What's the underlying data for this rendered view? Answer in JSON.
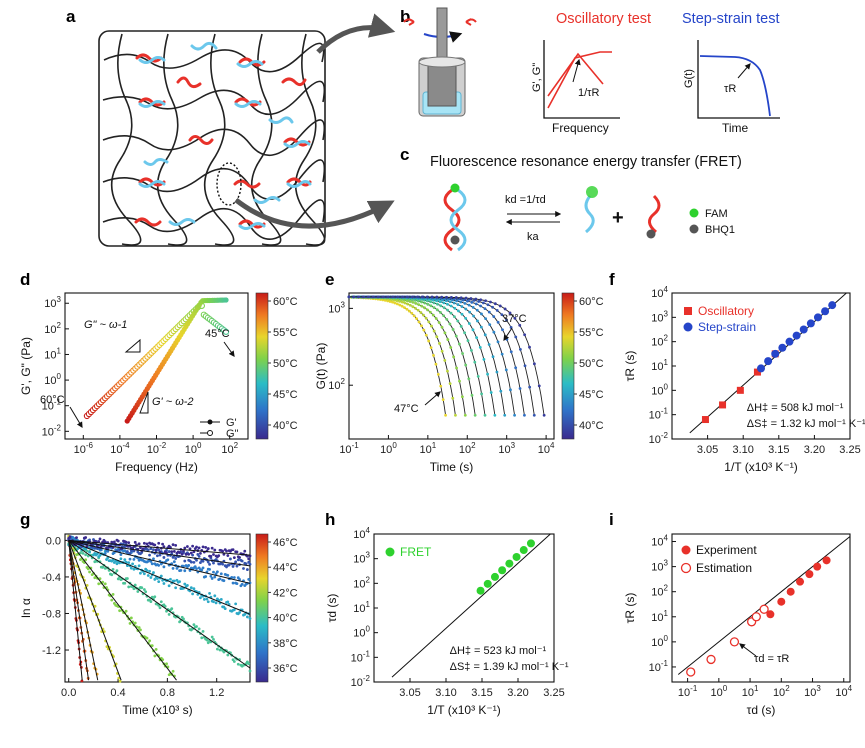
{
  "colors": {
    "red": "#e8312a",
    "blue": "#2545c9",
    "light_blue": "#6cc8ec",
    "green": "#2ed12e",
    "dark": "#111111"
  },
  "panels": {
    "a": {
      "label": "a"
    },
    "b": {
      "label": "b",
      "osc_title": "Oscillatory test",
      "step_title": "Step-strain test",
      "osc_ylabel": "G', G\"",
      "osc_xlabel": "Frequency",
      "osc_note": "1/τR",
      "step_ylabel": "G(t)",
      "step_xlabel": "Time",
      "step_note": "τR"
    },
    "c": {
      "label": "c",
      "title": "Fluorescence resonance energy transfer (FRET)",
      "kd": "kd =1/τd",
      "ka": "ka",
      "plus": "+",
      "legend": [
        "FAM",
        "BHQ1"
      ]
    },
    "d": {
      "label": "d"
    },
    "e": {
      "label": "e"
    },
    "f": {
      "label": "f"
    },
    "g": {
      "label": "g"
    },
    "h": {
      "label": "h"
    },
    "i": {
      "label": "i"
    }
  },
  "chart_data": [
    {
      "id": "d",
      "type": "scatter",
      "xlabel": "Frequency (Hz)",
      "ylabel": "G', G\" (Pa)",
      "x_ticks": [
        "10-6",
        "10-4",
        "10-2",
        "100",
        "102"
      ],
      "y_ticks": [
        "103",
        "102",
        "101",
        "100",
        "10-1",
        "10-2"
      ],
      "xlim_log": [
        -7,
        3
      ],
      "ylim_log": [
        -2.3,
        3.4
      ],
      "colorbar": {
        "ticks": [
          "60°C",
          "55°C",
          "50°C",
          "45°C",
          "40°C"
        ],
        "range": [
          37,
          60
        ]
      },
      "annotations": [
        "G\" ~ ω-1",
        "G' ~ ω-2",
        "60°C",
        "45°C"
      ],
      "legend": [
        "G'",
        "G\""
      ],
      "series": [
        {
          "name": "G'",
          "temp_range": [
            60,
            45
          ],
          "log_omega_start": -3.6,
          "log_omega_end": 1.8,
          "slope": 2,
          "plateau": 3.2
        },
        {
          "name": "G\"",
          "temp_range": [
            60,
            45
          ],
          "log_omega_start": -5.8,
          "log_omega_end": 1.8,
          "slope": 1,
          "peak_log": 2.6
        }
      ]
    },
    {
      "id": "e",
      "type": "line",
      "xlabel": "Time (s)",
      "ylabel": "G(t) (Pa)",
      "x_ticks": [
        "10-1",
        "100",
        "101",
        "102",
        "103",
        "104"
      ],
      "y_ticks": [
        "103",
        "102"
      ],
      "xlim_log": [
        -1,
        4.2
      ],
      "ylim_log": [
        1.3,
        3.2
      ],
      "colorbar": {
        "ticks": [
          "60°C",
          "55°C",
          "50°C",
          "45°C",
          "40°C"
        ],
        "range": [
          35,
          60
        ]
      },
      "annotations": [
        "37°C",
        "47°C"
      ],
      "series": [
        {
          "name": "47°C",
          "tau_log": 0.9
        },
        {
          "name": "46°C",
          "tau_log": 1.15
        },
        {
          "name": "45°C",
          "tau_log": 1.4
        },
        {
          "name": "44°C",
          "tau_log": 1.65
        },
        {
          "name": "43°C",
          "tau_log": 1.9
        },
        {
          "name": "42°C",
          "tau_log": 2.15
        },
        {
          "name": "41°C",
          "tau_log": 2.4
        },
        {
          "name": "40°C",
          "tau_log": 2.65
        },
        {
          "name": "39°C",
          "tau_log": 2.9
        },
        {
          "name": "38°C",
          "tau_log": 3.15
        },
        {
          "name": "37°C",
          "tau_log": 3.4
        }
      ]
    },
    {
      "id": "f",
      "type": "scatter",
      "xlabel": "1/T (x10³ K⁻¹)",
      "ylabel": "τR (s)",
      "x_ticks": [
        "3.05",
        "3.10",
        "3.15",
        "3.20",
        "3.25"
      ],
      "y_ticks": [
        "104",
        "103",
        "102",
        "101",
        "100",
        "10-1",
        "10-2"
      ],
      "xlim": [
        3.0,
        3.25
      ],
      "ylim_log": [
        -2,
        4
      ],
      "legend": [
        "Oscillatory",
        "Step-strain"
      ],
      "fit_note": [
        "ΔH‡ = 508 kJ mol⁻¹",
        "ΔS‡ = 1.32 kJ mol⁻¹ K⁻¹"
      ],
      "fit_line": {
        "x": [
          3.025,
          3.245
        ],
        "log_y": [
          -1.75,
          4.35
        ]
      },
      "series": [
        {
          "name": "Oscillatory",
          "x": [
            3.047,
            3.071,
            3.096,
            3.12,
            3.145
          ],
          "log_y": [
            -1.2,
            -0.6,
            0.0,
            0.75,
            1.5
          ]
        },
        {
          "name": "Step-strain",
          "x": [
            3.125,
            3.135,
            3.145,
            3.155,
            3.165,
            3.175,
            3.185,
            3.195,
            3.205,
            3.215,
            3.225
          ],
          "log_y": [
            0.9,
            1.2,
            1.5,
            1.75,
            2.0,
            2.25,
            2.5,
            2.75,
            3.0,
            3.25,
            3.5
          ]
        }
      ]
    },
    {
      "id": "g",
      "type": "scatter",
      "xlabel": "Time (x10³ s)",
      "ylabel": "ln α",
      "x_ticks": [
        "0.0",
        "0.4",
        "0.8",
        "1.2"
      ],
      "y_ticks": [
        "0.0",
        "-0.4",
        "-0.8",
        "-1.2"
      ],
      "xlim": [
        -0.03,
        1.47
      ],
      "ylim": [
        -1.55,
        0.07
      ],
      "colorbar": {
        "ticks": [
          "46°C",
          "44°C",
          "42°C",
          "40°C",
          "38°C",
          "36°C"
        ],
        "range": [
          35,
          46
        ]
      },
      "series": [
        {
          "name": "46°C",
          "rate": 14
        },
        {
          "name": "45°C",
          "rate": 9.5
        },
        {
          "name": "44°C",
          "rate": 6.5
        },
        {
          "name": "43°C",
          "rate": 3.6
        },
        {
          "name": "42°C",
          "rate": 1.75
        },
        {
          "name": "40°C",
          "rate": 0.95
        },
        {
          "name": "39°C",
          "rate": 0.55
        },
        {
          "name": "38°C",
          "rate": 0.32
        },
        {
          "name": "37°C",
          "rate": 0.19
        },
        {
          "name": "36°C",
          "rate": 0.11
        }
      ]
    },
    {
      "id": "h",
      "type": "scatter",
      "xlabel": "1/T (x10³ K⁻¹)",
      "ylabel": "τd (s)",
      "x_ticks": [
        "3.05",
        "3.10",
        "3.15",
        "3.20",
        "3.25"
      ],
      "y_ticks": [
        "104",
        "103",
        "102",
        "101",
        "100",
        "10-1",
        "10-2"
      ],
      "xlim": [
        3.0,
        3.25
      ],
      "ylim_log": [
        -2,
        4
      ],
      "legend": [
        "FRET"
      ],
      "fit_note": [
        "ΔH‡ = 523 kJ mol⁻¹",
        "ΔS‡ = 1.39 kJ mol⁻¹ K⁻¹"
      ],
      "fit_line": {
        "x": [
          3.025,
          3.245
        ],
        "log_y": [
          -1.8,
          4.3
        ]
      },
      "series": [
        {
          "name": "FRET",
          "x": [
            3.148,
            3.158,
            3.168,
            3.178,
            3.188,
            3.198,
            3.208,
            3.218
          ],
          "log_y": [
            1.7,
            1.98,
            2.26,
            2.53,
            2.8,
            3.07,
            3.35,
            3.62
          ]
        }
      ]
    },
    {
      "id": "i",
      "type": "scatter",
      "xlabel": "τd (s)",
      "ylabel": "τR (s)",
      "x_ticks": [
        "10-1",
        "100",
        "101",
        "102",
        "103",
        "104"
      ],
      "y_ticks": [
        "104",
        "103",
        "102",
        "101",
        "100",
        "10-1"
      ],
      "xlim_log": [
        -1.5,
        4.2
      ],
      "ylim_log": [
        -1.6,
        4.3
      ],
      "legend": [
        "Experiment",
        "Estimation"
      ],
      "annotation": "τd = τR",
      "identity_line": {
        "log_x": [
          -1.3,
          4.2
        ],
        "log_y": [
          -1.3,
          4.2
        ]
      },
      "series": [
        {
          "name": "Experiment",
          "log_x": [
            1.65,
            2.0,
            2.3,
            2.6,
            2.9,
            3.15,
            3.45
          ],
          "log_y": [
            1.1,
            1.6,
            2.0,
            2.4,
            2.7,
            3.0,
            3.25
          ]
        },
        {
          "name": "Estimation",
          "log_x": [
            -0.9,
            -0.25,
            0.5,
            1.05,
            1.2,
            1.45
          ],
          "log_y": [
            -1.2,
            -0.7,
            0.0,
            0.8,
            1.0,
            1.3
          ]
        }
      ]
    }
  ]
}
